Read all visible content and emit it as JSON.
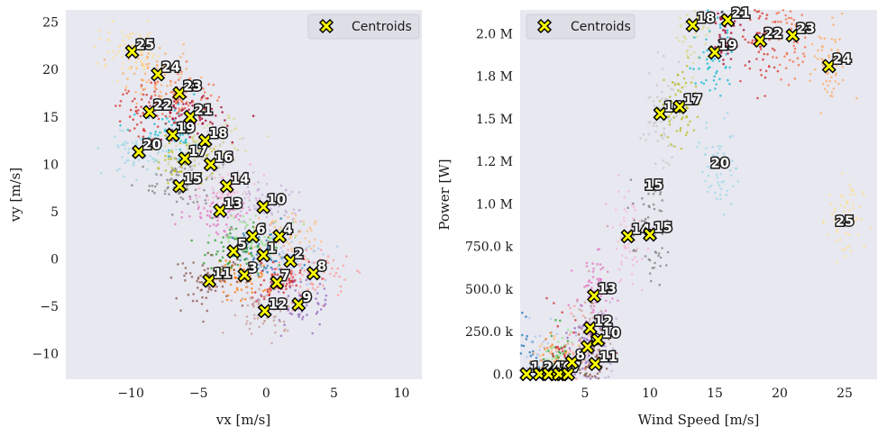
{
  "colors": {
    "axes_bg": "#e8e8f1",
    "grid": "#ffffff",
    "marker_fill": "#ffff00",
    "marker_edge": "#000000",
    "cluster_palette": [
      "#1f77b4",
      "#aec7e8",
      "#ff7f0e",
      "#ffbb78",
      "#2ca02c",
      "#98df8a",
      "#d62728",
      "#ff9896",
      "#9467bd",
      "#c5b0d5",
      "#8c564b",
      "#c49c94",
      "#e377c2",
      "#f7b6d2",
      "#7f7f7f",
      "#c7c7c7",
      "#bcbd22",
      "#dbdb8d",
      "#17becf",
      "#9edae5",
      "#a50026",
      "#d73027",
      "#f46d43",
      "#fdae61",
      "#fee090"
    ]
  },
  "chart_data": [
    {
      "type": "scatter",
      "xlabel": "vx [m/s]",
      "ylabel": "vy [m/s]",
      "xlim": [
        -14.8,
        11.5
      ],
      "ylim": [
        -12.7,
        26.3
      ],
      "xticks": [
        -10,
        -5,
        0,
        5,
        10
      ],
      "xtick_labels": [
        "−10",
        "−5",
        "0",
        "5",
        "10"
      ],
      "yticks": [
        -10,
        -5,
        0,
        5,
        10,
        15,
        20,
        25
      ],
      "ytick_labels": [
        "−10",
        "−5",
        "0",
        "5",
        "10",
        "15",
        "20",
        "25"
      ],
      "grid": false,
      "legend": {
        "position": "top-right",
        "entries": [
          "Centroids"
        ]
      },
      "series": [
        {
          "name": "Centroids",
          "labels": [
            "1",
            "2",
            "3",
            "4",
            "5",
            "6",
            "7",
            "8",
            "9",
            "10",
            "11",
            "12",
            "13",
            "14",
            "15",
            "16",
            "17",
            "18",
            "19",
            "20",
            "21",
            "22",
            "23",
            "24",
            "25"
          ],
          "x": [
            -0.2,
            1.8,
            -1.6,
            1.0,
            -2.4,
            -1.0,
            0.8,
            3.5,
            2.4,
            -0.2,
            -4.2,
            -0.1,
            -3.4,
            -2.9,
            -6.4,
            -4.1,
            -6.0,
            -4.5,
            -6.9,
            -9.4,
            -5.6,
            -8.6,
            -6.4,
            -8.0,
            -9.9
          ],
          "y": [
            0.4,
            -0.2,
            -1.7,
            2.4,
            0.8,
            2.4,
            -2.5,
            -1.5,
            -4.8,
            5.5,
            -2.3,
            -5.5,
            5.1,
            7.7,
            7.7,
            10.0,
            10.6,
            12.5,
            13.1,
            11.3,
            15.0,
            15.5,
            17.5,
            19.5,
            21.9
          ]
        }
      ]
    },
    {
      "type": "scatter",
      "xlabel": "Wind Speed [m/s]",
      "ylabel": "Power [W]",
      "xlim": [
        0,
        27.5
      ],
      "ylim": [
        -30000,
        2140000
      ],
      "xticks": [
        5,
        10,
        15,
        20,
        25
      ],
      "xtick_labels": [
        "5",
        "10",
        "15",
        "20",
        "25"
      ],
      "yticks": [
        0,
        250000,
        500000,
        750000,
        1000000,
        1250000,
        1500000,
        1750000,
        2000000
      ],
      "ytick_labels": [
        "0.0",
        "250.0 k",
        "500.0 k",
        "750.0 k",
        "1.0 M",
        "1.2 M",
        "1.5 M",
        "1.8 M",
        "2.0 M"
      ],
      "grid": false,
      "legend": {
        "position": "top-left",
        "entries": [
          "Centroids"
        ]
      },
      "series": [
        {
          "name": "Centroids",
          "labels": [
            "1",
            "2",
            "3",
            "4",
            "5",
            "6",
            "7",
            "8",
            "9",
            "10",
            "11",
            "12",
            "13",
            "14",
            "15",
            "16",
            "17",
            "18",
            "19",
            "20",
            "21",
            "22",
            "23",
            "24",
            "25"
          ],
          "x": [
            0.5,
            1.5,
            2.7,
            2.2,
            3.2,
            3.0,
            3.7,
            4.0,
            5.2,
            6.0,
            5.8,
            5.4,
            5.7,
            8.3,
            10.0,
            10.8,
            12.3,
            13.3,
            15.0,
            null,
            16.0,
            18.5,
            21.0,
            23.8,
            null
          ],
          "y": [
            0,
            0,
            0,
            0,
            0,
            0,
            0,
            70000,
            160000,
            200000,
            60000,
            270000,
            460000,
            810000,
            820000,
            1530000,
            1570000,
            2050000,
            1890000,
            null,
            2080000,
            1960000,
            1990000,
            1810000,
            null
          ],
          "label_only": [
            {
              "label": "15",
              "x": 10.3,
              "y": 1110000
            },
            {
              "label": "20",
              "x": 15.4,
              "y": 1240000
            },
            {
              "label": "25",
              "x": 25.0,
              "y": 900000
            }
          ]
        }
      ]
    }
  ]
}
